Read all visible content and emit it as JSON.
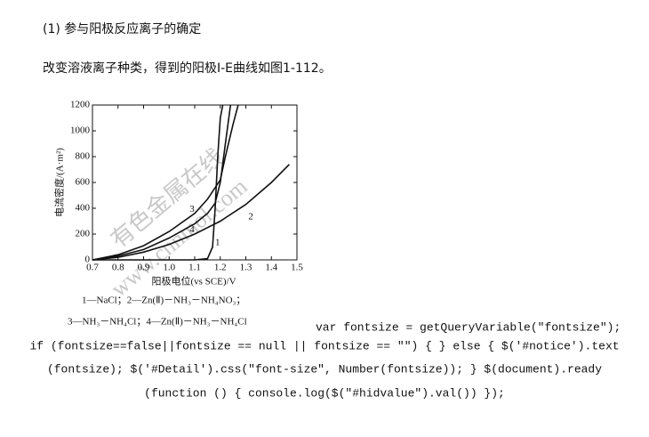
{
  "document": {
    "heading": "(1) 参与阳极反应离子的确定",
    "paragraph": "改变溶液离子种类，得到的阳极I-E曲线如图1-112。",
    "watermark": [
      "有色金属在线",
      "www.cnnmol.com"
    ],
    "figure_legend": [
      "1—NaCl；2—Zn(Ⅱ)－NH₃－NH₄NO₃；",
      "3—NH₃－NH₄Cl；4—Zn(Ⅱ)－NH₃－NH₄Cl"
    ],
    "code": [
      "var fontsize = getQueryVariable(\"fontsize\");",
      "if (fontsize==false||fontsize == null || fontsize == \"\") { } else { $('#notice').text",
      "(fontsize); $('#Detail').css(\"font-size\", Number(fontsize)); } $(document).ready",
      "(function () { console.log($(\"#hidvalue\").val()) });"
    ]
  },
  "chart_data": {
    "type": "line",
    "x_label": "阳极电位(vs SCE)/V",
    "y_label": "电流密度/(A·m²)",
    "xlim": [
      0.7,
      1.5
    ],
    "ylim": [
      0,
      1200
    ],
    "xticks": [
      0.7,
      0.8,
      0.9,
      {
        "value": 1,
        "label": "1.0"
      },
      1.1,
      1.2,
      1.3,
      1.4,
      1.5
    ],
    "yticks": [
      0,
      200,
      400,
      600,
      800,
      1000,
      1200
    ],
    "series": [
      {
        "name": "1",
        "color": "#111111",
        "x": [
          0.7,
          1.0,
          1.1,
          1.15,
          1.17,
          1.18,
          1.19,
          1.2,
          1.21
        ],
        "values": [
          0,
          0,
          0,
          10,
          100,
          400,
          800,
          1100,
          1200
        ]
      },
      {
        "name": "2",
        "color": "#111111",
        "x": [
          0.7,
          0.8,
          0.9,
          1.0,
          1.1,
          1.2,
          1.3,
          1.4,
          1.47
        ],
        "values": [
          0,
          20,
          60,
          120,
          200,
          300,
          430,
          600,
          740
        ]
      },
      {
        "name": "3",
        "color": "#111111",
        "x": [
          0.7,
          0.8,
          0.9,
          1.0,
          1.1,
          1.15,
          1.2,
          1.22,
          1.25,
          1.27
        ],
        "values": [
          0,
          40,
          110,
          220,
          360,
          470,
          620,
          800,
          1050,
          1200
        ]
      },
      {
        "name": "4",
        "color": "#111111",
        "x": [
          0.7,
          0.8,
          0.9,
          1.0,
          1.1,
          1.15,
          1.18,
          1.2,
          1.22,
          1.24
        ],
        "values": [
          0,
          30,
          80,
          170,
          280,
          360,
          440,
          600,
          900,
          1200
        ]
      }
    ]
  }
}
